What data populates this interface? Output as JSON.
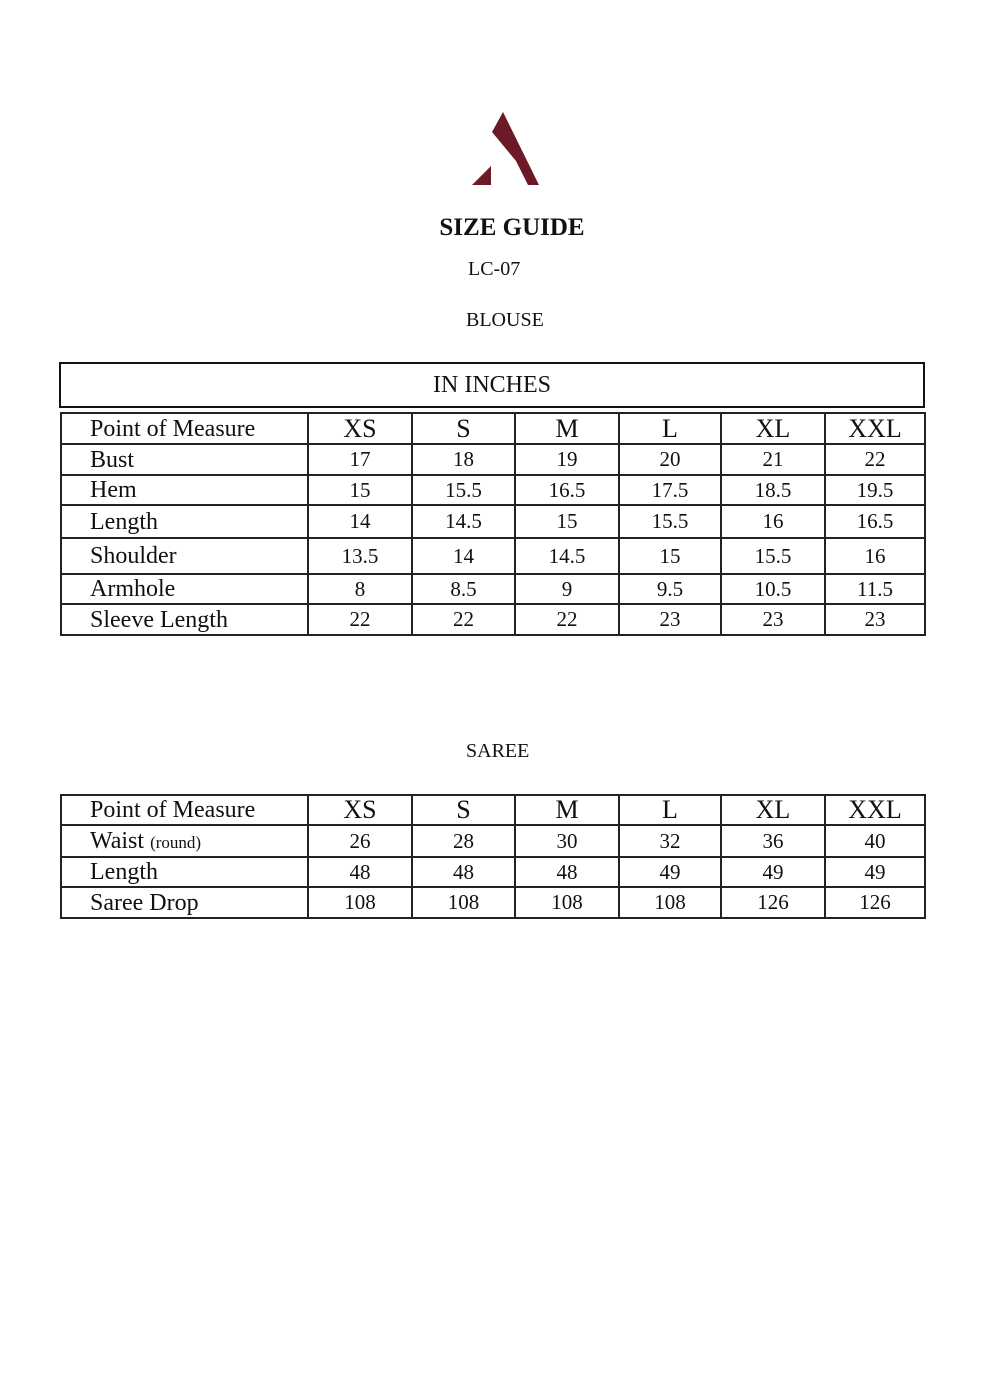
{
  "brand": {
    "logo_icon": "letter-a-logo",
    "color": "#6b1a26"
  },
  "title": "SIZE GUIDE",
  "product_code": "LC-07",
  "blouse": {
    "section_title": "BLOUSE",
    "unit_label": "IN INCHES",
    "headers": [
      "Point of Measure",
      "XS",
      "S",
      "M",
      "L",
      "XL",
      "XXL"
    ],
    "rows": [
      {
        "label": "Bust",
        "values": [
          "17",
          "18",
          "19",
          "20",
          "21",
          "22"
        ]
      },
      {
        "label": "Hem",
        "values": [
          "15",
          "15.5",
          "16.5",
          "17.5",
          "18.5",
          "19.5"
        ]
      },
      {
        "label": "Length",
        "values": [
          "14",
          "14.5",
          "15",
          "15.5",
          "16",
          "16.5"
        ]
      },
      {
        "label": "Shoulder",
        "values": [
          "13.5",
          "14",
          "14.5",
          "15",
          "15.5",
          "16"
        ]
      },
      {
        "label": "Armhole",
        "values": [
          "8",
          "8.5",
          "9",
          "9.5",
          "10.5",
          "11.5"
        ]
      },
      {
        "label": "Sleeve Length",
        "values": [
          "22",
          "22",
          "22",
          "23",
          "23",
          "23"
        ]
      }
    ]
  },
  "saree": {
    "section_title": "SAREE",
    "headers": [
      "Point of Measure",
      "XS",
      "S",
      "M",
      "L",
      "XL",
      "XXL"
    ],
    "rows": [
      {
        "label": "Waist",
        "note": "(round)",
        "values": [
          "26",
          "28",
          "30",
          "32",
          "36",
          "40"
        ]
      },
      {
        "label": "Length",
        "values": [
          "48",
          "48",
          "48",
          "49",
          "49",
          "49"
        ]
      },
      {
        "label": "Saree Drop",
        "values": [
          "108",
          "108",
          "108",
          "108",
          "126",
          "126"
        ]
      }
    ]
  }
}
